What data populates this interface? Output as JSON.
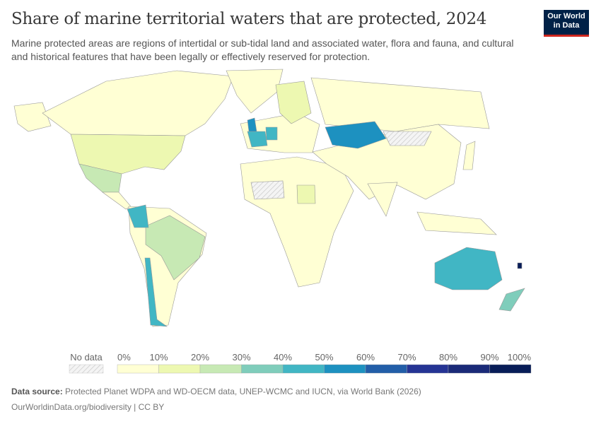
{
  "header": {
    "title": "Share of marine territorial waters that are protected, 2024",
    "subtitle": "Marine protected areas are regions of intertidal or sub-tidal land and associated water, flora and fauna, and cultural and historical features that have been legally or effectively reserved for protection.",
    "logo": "Our World in Data"
  },
  "legend": {
    "no_data_label": "No data",
    "ticks": [
      "0%",
      "10%",
      "20%",
      "30%",
      "40%",
      "50%",
      "60%",
      "70%",
      "80%",
      "90%",
      "100%"
    ],
    "colors": [
      "#ffffd4",
      "#edf8b1",
      "#c7e9b4",
      "#7fcdbb",
      "#41b6c4",
      "#1d91c0",
      "#225ea8",
      "#253494",
      "#1a2a78",
      "#081d58"
    ]
  },
  "footer": {
    "source_label": "Data source:",
    "source_text": "Protected Planet WDPA and WD-OECM data, UNEP-WCMC and IUCN, via World Bank (2026)",
    "url": "OurWorldinData.org/biodiversity | CC BY"
  }
}
